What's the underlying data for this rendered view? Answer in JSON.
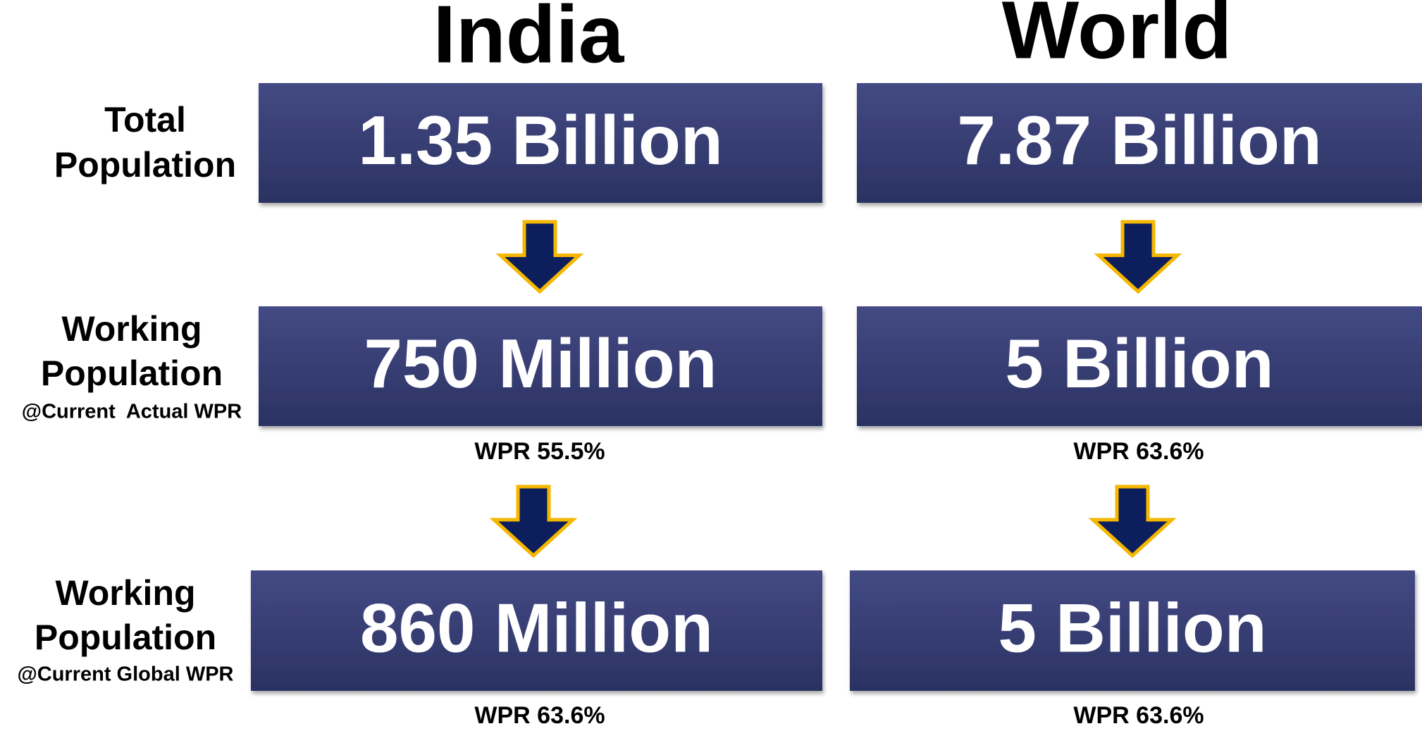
{
  "columns": [
    {
      "title": "India",
      "boxes": [
        "1.35 Billion",
        "750 Million",
        "860 Million"
      ],
      "notes": [
        "WPR 55.5%",
        "WPR 63.6%"
      ]
    },
    {
      "title": "World",
      "boxes": [
        "7.87 Billion",
        "5 Billion",
        "5 Billion"
      ],
      "notes": [
        "WPR 63.6%",
        "WPR 63.6%"
      ]
    }
  ],
  "rows": [
    {
      "label": [
        "Total",
        "Population"
      ]
    },
    {
      "label": [
        "Working",
        "Population"
      ],
      "sublabel": "@Current  Actual WPR"
    },
    {
      "label": [
        "Working",
        "Population"
      ],
      "sublabel": "@Current Global WPR"
    }
  ]
}
